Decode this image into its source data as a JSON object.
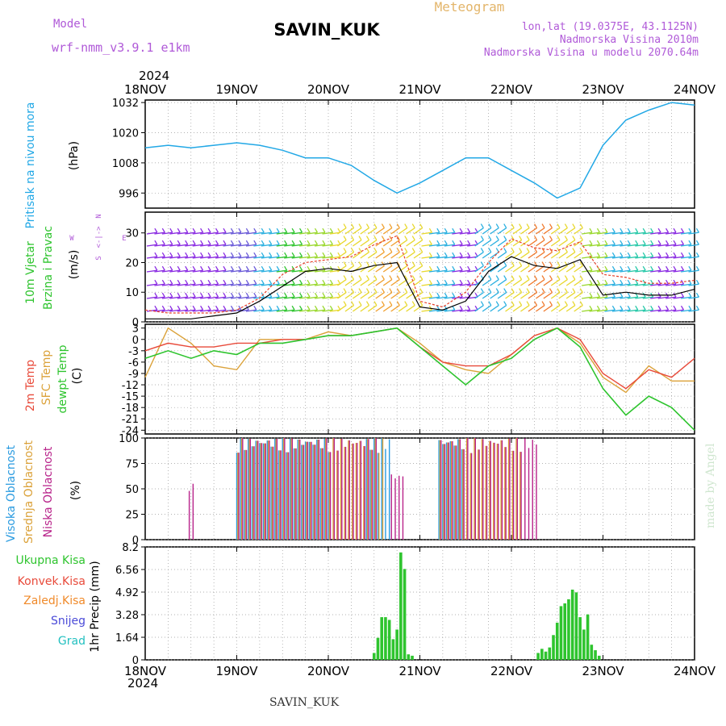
{
  "header": {
    "model_label": "Model",
    "model_name": "wrf-nmm_v3.9.1  e1km",
    "station": "SAVIN_KUK",
    "product": "Meteogram",
    "lonlat": "lon,lat (19.0375E, 43.1125N)",
    "elevation": "Nadmorska Visina 2010m",
    "model_elevation": "Nadmorska Visina u modelu 2070.64m",
    "year": "2024",
    "footer_station": "SAVIN_KUK",
    "watermark": "made by Angel"
  },
  "colors": {
    "pressure": "#22a8e6",
    "wind_speed": "#000000",
    "wind_gust": "#e8402a",
    "temp_2m": "#e84a3a",
    "temp_sfc": "#dba23a",
    "temp_dew": "#2ec42e",
    "cloud_high": "#2a9be0",
    "cloud_mid": "#dba23a",
    "cloud_low": "#b8238a",
    "precip_total": "#2ec42e",
    "precip_conv": "#e84a3a",
    "precip_frozen": "#f08a2a",
    "precip_snow": "#4a4ad8",
    "precip_grad": "#22c0c0"
  },
  "chart_data": [
    {
      "type": "line",
      "panel": "pressure",
      "ylabel_outer": "Pritisak na nivou mora",
      "ylabel": "(hPa)",
      "ylim": [
        990,
        1033
      ],
      "yticks": [
        "996",
        "1008",
        "1020",
        "1032"
      ],
      "xticks_top": [
        "18NOV",
        "19NOV",
        "20NOV",
        "21NOV",
        "22NOV",
        "23NOV",
        "24NOV"
      ],
      "x_hours": [
        0,
        6,
        12,
        18,
        24,
        30,
        36,
        42,
        48,
        54,
        60,
        66,
        72,
        78,
        84,
        90,
        96,
        102,
        108,
        114,
        120,
        126,
        132,
        138,
        144
      ],
      "series": [
        {
          "values": [
            1014,
            1015,
            1014,
            1015,
            1016,
            1015,
            1013,
            1010,
            1010,
            1007,
            1001,
            996,
            1000,
            1005,
            1010,
            1010,
            1005,
            1000,
            994,
            998,
            1015,
            1025,
            1029,
            1032,
            1031
          ]
        }
      ]
    },
    {
      "type": "line",
      "panel": "wind",
      "ylabel_outer": [
        "10m Vjetar",
        "Brzina i Pravac"
      ],
      "ylabel": "(m/s)",
      "compass": [
        "N",
        "E",
        "S",
        "W"
      ],
      "ylim": [
        0,
        37
      ],
      "yticks": [
        "0",
        "10",
        "20",
        "30"
      ],
      "x_hours": [
        0,
        6,
        12,
        18,
        24,
        30,
        36,
        42,
        48,
        54,
        60,
        66,
        72,
        78,
        84,
        90,
        96,
        102,
        108,
        114,
        120,
        126,
        132,
        138,
        144
      ],
      "series": [
        {
          "key": "speed",
          "values": [
            1,
            1,
            1,
            2,
            3,
            7,
            12,
            17,
            18,
            17,
            19,
            20,
            5,
            4,
            7,
            17,
            22,
            19,
            18,
            21,
            9,
            10,
            9,
            9,
            11
          ]
        },
        {
          "key": "gust",
          "values": [
            4,
            3,
            3,
            3,
            4,
            8,
            16,
            20,
            21,
            22,
            26,
            29,
            7,
            5,
            10,
            20,
            28,
            25,
            24,
            27,
            16,
            15,
            13,
            13,
            14
          ]
        }
      ]
    },
    {
      "type": "line",
      "panel": "temperature",
      "ylabel_outer": [
        "2m Temp",
        "SFC Temp",
        "dewpt Temp"
      ],
      "ylabel": "(C)",
      "ylim": [
        -25,
        4
      ],
      "yticks": [
        "3",
        "0",
        "-3",
        "-6",
        "-9",
        "-12",
        "-15",
        "-18",
        "-21",
        "-24"
      ],
      "x_hours": [
        0,
        6,
        12,
        18,
        24,
        30,
        36,
        42,
        48,
        54,
        60,
        66,
        72,
        78,
        84,
        90,
        96,
        102,
        108,
        114,
        120,
        126,
        132,
        138,
        144
      ],
      "series": [
        {
          "key": "t2m",
          "values": [
            -3,
            -1,
            -2,
            -2,
            -1,
            -1,
            0,
            0,
            1,
            1,
            2,
            3,
            -2,
            -6,
            -7,
            -7,
            -4,
            1,
            3,
            0,
            -9,
            -13,
            -8,
            -10,
            -5
          ]
        },
        {
          "key": "tsfc",
          "values": [
            -10,
            3,
            -1,
            -7,
            -8,
            0,
            0,
            0,
            2,
            1,
            2,
            3,
            -1,
            -6,
            -8,
            -9,
            -4,
            1,
            3,
            -1,
            -10,
            -14,
            -7,
            -11,
            -11
          ]
        },
        {
          "key": "dew",
          "values": [
            -5,
            -3,
            -5,
            -3,
            -4,
            -1,
            -1,
            0,
            1,
            1,
            2,
            3,
            -2,
            -7,
            -12,
            -7,
            -5,
            0,
            3,
            -2,
            -13,
            -20,
            -15,
            -18,
            -24
          ]
        }
      ]
    },
    {
      "type": "bar",
      "panel": "cloud",
      "ylabel_outer": [
        "Visoka Oblacnost",
        "Srednja Oblacnost",
        "Niska Oblacnost"
      ],
      "ylabel": "(%)",
      "ylim": [
        0,
        100
      ],
      "yticks": [
        "0",
        "25",
        "50",
        "75",
        "100"
      ],
      "series": [
        {
          "key": "high",
          "segments": [
            [
              24,
              48,
              100
            ],
            [
              58,
              64,
              100
            ],
            [
              77,
              83,
              100
            ]
          ]
        },
        {
          "key": "mid",
          "segments": [
            [
              24,
              62,
              100
            ],
            [
              77,
              98,
              100
            ]
          ]
        },
        {
          "key": "low",
          "segments": [
            [
              11,
              12,
              55
            ],
            [
              24,
              60,
              100
            ],
            [
              64,
              67,
              65
            ],
            [
              77,
              102,
              100
            ]
          ]
        }
      ]
    },
    {
      "type": "bar",
      "panel": "precip",
      "ylabel_outer": [
        "Ukupna Kisa",
        "Konvek.Kisa",
        "Zaledj.Kisa",
        "Snijeg",
        "Grad"
      ],
      "ylabel": "1hr Precip (mm)",
      "ylim": [
        0,
        8.2
      ],
      "yticks": [
        "0",
        "1.64",
        "3.28",
        "4.92",
        "6.56",
        "8.2"
      ],
      "xticks_bottom": [
        "18NOV",
        "19NOV",
        "20NOV",
        "21NOV",
        "22NOV",
        "23NOV",
        "24NOV"
      ],
      "bars": [
        [
          60,
          0.5
        ],
        [
          61,
          1.6
        ],
        [
          62,
          3.1
        ],
        [
          63,
          3.1
        ],
        [
          64,
          2.9
        ],
        [
          65,
          1.5
        ],
        [
          66,
          2.2
        ],
        [
          67,
          7.8
        ],
        [
          68,
          6.6
        ],
        [
          69,
          0.4
        ],
        [
          70,
          0.3
        ],
        [
          103,
          0.5
        ],
        [
          104,
          0.8
        ],
        [
          105,
          0.6
        ],
        [
          106,
          0.9
        ],
        [
          107,
          1.8
        ],
        [
          108,
          2.7
        ],
        [
          109,
          3.9
        ],
        [
          110,
          4.1
        ],
        [
          111,
          4.4
        ],
        [
          112,
          5.1
        ],
        [
          113,
          4.9
        ],
        [
          114,
          3.1
        ],
        [
          115,
          2.2
        ],
        [
          116,
          3.3
        ],
        [
          117,
          1.1
        ],
        [
          118,
          0.7
        ],
        [
          119,
          0.3
        ]
      ]
    }
  ]
}
